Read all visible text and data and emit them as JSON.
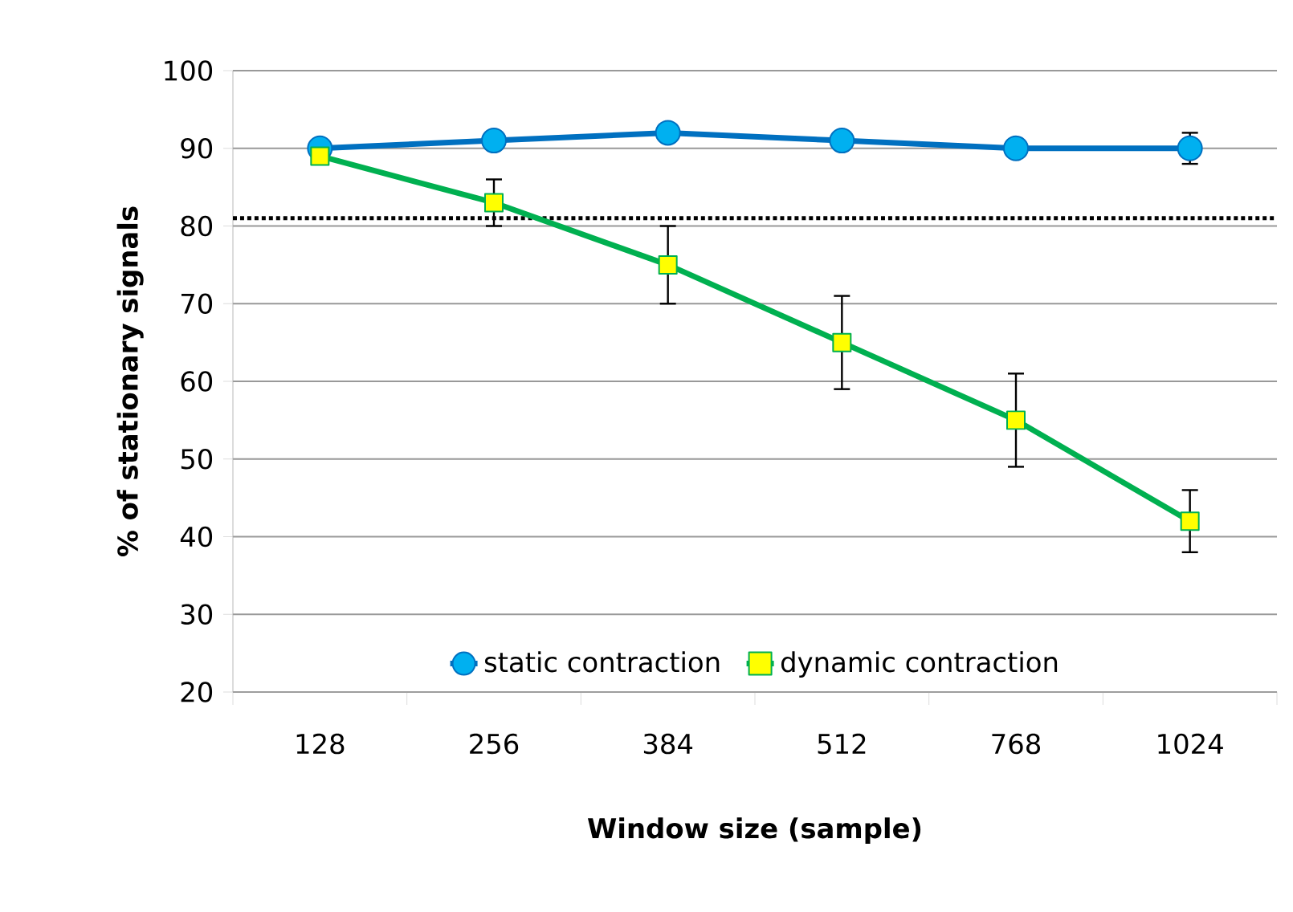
{
  "chart_data": {
    "type": "line",
    "xlabel": "Window size (sample)",
    "ylabel": "% of stationary signals",
    "categories": [
      "128",
      "256",
      "384",
      "512",
      "768",
      "1024"
    ],
    "series": [
      {
        "name": "static contraction",
        "color": "#0070c0",
        "marker": "circle",
        "values": [
          90,
          91,
          92,
          91,
          90,
          90
        ],
        "errors": [
          null,
          null,
          null,
          null,
          null,
          2
        ]
      },
      {
        "name": "dynamic contraction",
        "color": "#00b050",
        "marker": "square",
        "values": [
          89,
          83,
          75,
          65,
          55,
          42
        ],
        "errors": [
          null,
          3,
          5,
          6,
          6,
          4
        ]
      }
    ],
    "ylim": [
      20,
      100
    ],
    "yticks": [
      20,
      30,
      40,
      50,
      60,
      70,
      80,
      90,
      100
    ],
    "ref_lines": [
      {
        "axis": "y",
        "value": 81,
        "color": "#000000",
        "line_style": "dotted"
      }
    ],
    "grid": "y",
    "legend": "bottom"
  }
}
